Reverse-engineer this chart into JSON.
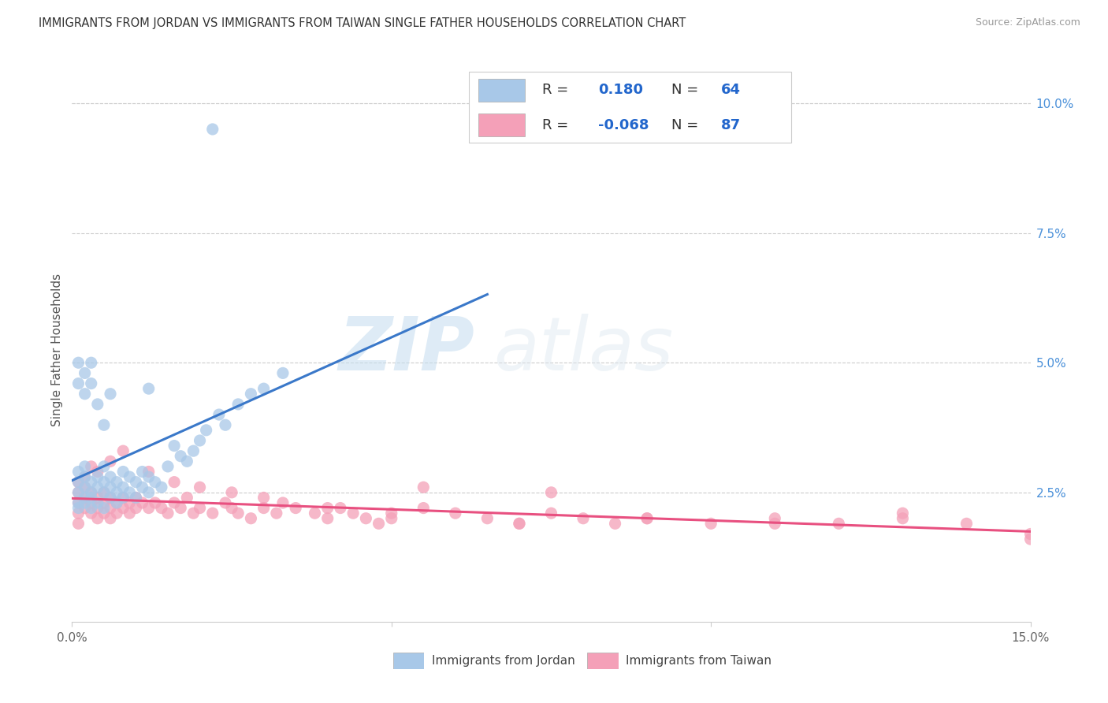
{
  "title": "IMMIGRANTS FROM JORDAN VS IMMIGRANTS FROM TAIWAN SINGLE FATHER HOUSEHOLDS CORRELATION CHART",
  "source": "Source: ZipAtlas.com",
  "ylabel": "Single Father Households",
  "xlim": [
    0.0,
    0.15
  ],
  "ylim": [
    0.0,
    0.105
  ],
  "xticks": [
    0.0,
    0.05,
    0.1,
    0.15
  ],
  "xticklabels_ends": [
    "0.0%",
    "15.0%"
  ],
  "yticks_right": [
    0.025,
    0.05,
    0.075,
    0.1
  ],
  "yticklabels_right": [
    "2.5%",
    "5.0%",
    "7.5%",
    "10.0%"
  ],
  "jordan_R": 0.18,
  "jordan_N": 64,
  "taiwan_R": -0.068,
  "taiwan_N": 87,
  "jordan_color": "#a8c8e8",
  "taiwan_color": "#f4a0b8",
  "jordan_line_color": "#3a78c9",
  "taiwan_line_color": "#e85080",
  "watermark_zip": "ZIP",
  "watermark_atlas": "atlas",
  "legend_label_jordan": "Immigrants from Jordan",
  "legend_label_taiwan": "Immigrants from Taiwan",
  "jordan_x": [
    0.001,
    0.001,
    0.001,
    0.001,
    0.001,
    0.002,
    0.002,
    0.002,
    0.002,
    0.002,
    0.003,
    0.003,
    0.003,
    0.003,
    0.004,
    0.004,
    0.004,
    0.005,
    0.005,
    0.005,
    0.005,
    0.006,
    0.006,
    0.006,
    0.007,
    0.007,
    0.007,
    0.008,
    0.008,
    0.008,
    0.009,
    0.009,
    0.01,
    0.01,
    0.011,
    0.011,
    0.012,
    0.012,
    0.013,
    0.014,
    0.015,
    0.016,
    0.017,
    0.018,
    0.019,
    0.02,
    0.021,
    0.023,
    0.024,
    0.026,
    0.028,
    0.03,
    0.033,
    0.001,
    0.001,
    0.002,
    0.002,
    0.003,
    0.003,
    0.004,
    0.005,
    0.006,
    0.012,
    0.022
  ],
  "jordan_y": [
    0.025,
    0.027,
    0.023,
    0.029,
    0.022,
    0.024,
    0.026,
    0.028,
    0.023,
    0.03,
    0.025,
    0.027,
    0.022,
    0.024,
    0.026,
    0.023,
    0.028,
    0.025,
    0.027,
    0.022,
    0.03,
    0.024,
    0.026,
    0.028,
    0.025,
    0.027,
    0.023,
    0.024,
    0.026,
    0.029,
    0.025,
    0.028,
    0.024,
    0.027,
    0.026,
    0.029,
    0.025,
    0.028,
    0.027,
    0.026,
    0.03,
    0.034,
    0.032,
    0.031,
    0.033,
    0.035,
    0.037,
    0.04,
    0.038,
    0.042,
    0.044,
    0.045,
    0.048,
    0.046,
    0.05,
    0.048,
    0.044,
    0.05,
    0.046,
    0.042,
    0.038,
    0.044,
    0.045,
    0.095
  ],
  "taiwan_x": [
    0.001,
    0.001,
    0.001,
    0.001,
    0.002,
    0.002,
    0.002,
    0.003,
    0.003,
    0.003,
    0.004,
    0.004,
    0.004,
    0.005,
    0.005,
    0.005,
    0.006,
    0.006,
    0.006,
    0.007,
    0.007,
    0.008,
    0.008,
    0.009,
    0.009,
    0.01,
    0.01,
    0.011,
    0.012,
    0.013,
    0.014,
    0.015,
    0.016,
    0.017,
    0.018,
    0.019,
    0.02,
    0.022,
    0.024,
    0.025,
    0.026,
    0.028,
    0.03,
    0.032,
    0.033,
    0.035,
    0.038,
    0.04,
    0.042,
    0.044,
    0.046,
    0.048,
    0.05,
    0.055,
    0.06,
    0.065,
    0.07,
    0.075,
    0.08,
    0.085,
    0.09,
    0.1,
    0.11,
    0.12,
    0.13,
    0.14,
    0.15,
    0.001,
    0.002,
    0.003,
    0.004,
    0.006,
    0.008,
    0.012,
    0.016,
    0.02,
    0.025,
    0.03,
    0.04,
    0.05,
    0.07,
    0.09,
    0.11,
    0.13,
    0.15,
    0.055,
    0.075
  ],
  "taiwan_y": [
    0.023,
    0.021,
    0.025,
    0.019,
    0.024,
    0.022,
    0.026,
    0.021,
    0.023,
    0.025,
    0.022,
    0.024,
    0.02,
    0.023,
    0.021,
    0.025,
    0.022,
    0.024,
    0.02,
    0.023,
    0.021,
    0.022,
    0.024,
    0.023,
    0.021,
    0.022,
    0.024,
    0.023,
    0.022,
    0.023,
    0.022,
    0.021,
    0.023,
    0.022,
    0.024,
    0.021,
    0.022,
    0.021,
    0.023,
    0.022,
    0.021,
    0.02,
    0.022,
    0.021,
    0.023,
    0.022,
    0.021,
    0.02,
    0.022,
    0.021,
    0.02,
    0.019,
    0.021,
    0.022,
    0.021,
    0.02,
    0.019,
    0.021,
    0.02,
    0.019,
    0.02,
    0.019,
    0.02,
    0.019,
    0.02,
    0.019,
    0.016,
    0.027,
    0.028,
    0.03,
    0.029,
    0.031,
    0.033,
    0.029,
    0.027,
    0.026,
    0.025,
    0.024,
    0.022,
    0.02,
    0.019,
    0.02,
    0.019,
    0.021,
    0.017,
    0.026,
    0.025
  ]
}
